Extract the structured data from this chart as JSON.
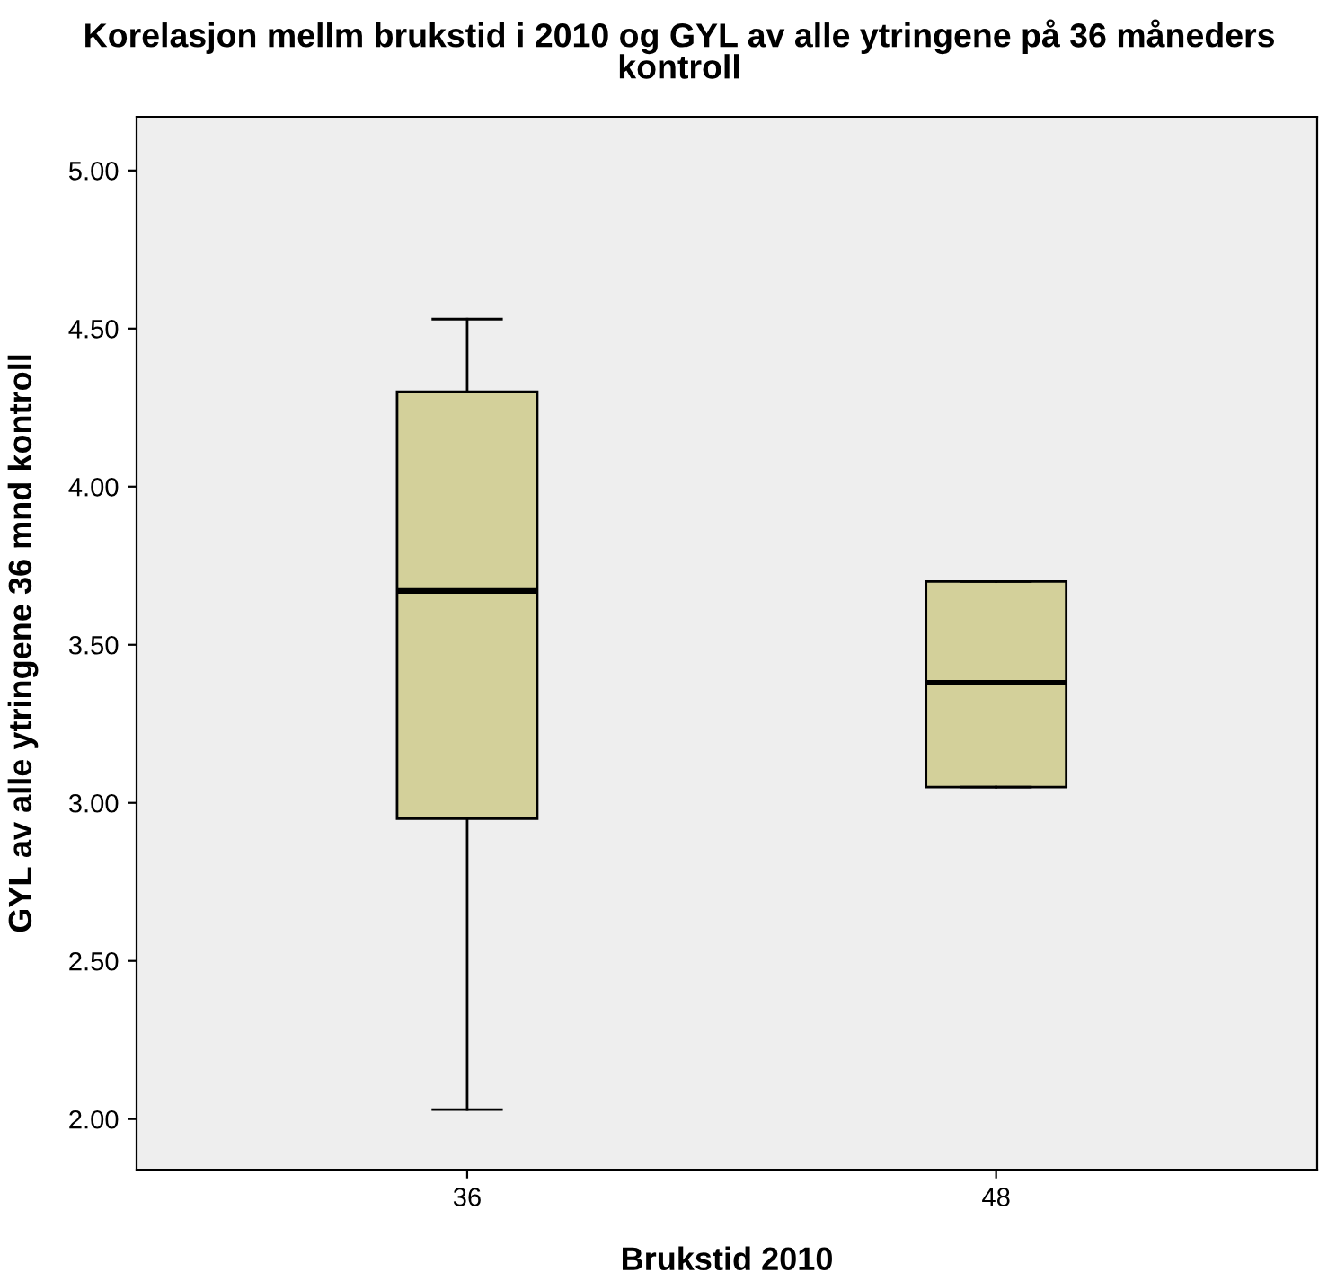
{
  "chart_data": {
    "type": "box",
    "title": "Korelasjon mellm brukstid i 2010 og GYL av alle ytringene på 36 måneders kontroll",
    "xlabel": "Brukstid 2010",
    "ylabel": "GYL av alle ytringene 36 mnd kontroll",
    "categories": [
      "36",
      "48"
    ],
    "color": "#d3d09a",
    "boxes": [
      {
        "low": 2.03,
        "q1": 2.95,
        "median": 3.67,
        "q3": 4.3,
        "high": 4.53
      },
      {
        "low": 3.05,
        "q1": 3.05,
        "median": 3.38,
        "q3": 3.7,
        "high": 3.7
      }
    ],
    "ylim": [
      1.84,
      5.17
    ],
    "yticks": [
      {
        "value": 2,
        "label": "2.00"
      },
      {
        "value": 2.5,
        "label": "2.50"
      },
      {
        "value": 3,
        "label": "3.00"
      },
      {
        "value": 3.5,
        "label": "3.50"
      },
      {
        "value": 4,
        "label": "4.00"
      },
      {
        "value": 4.5,
        "label": "4.50"
      },
      {
        "value": 5,
        "label": "5.00"
      }
    ],
    "grid": false
  }
}
